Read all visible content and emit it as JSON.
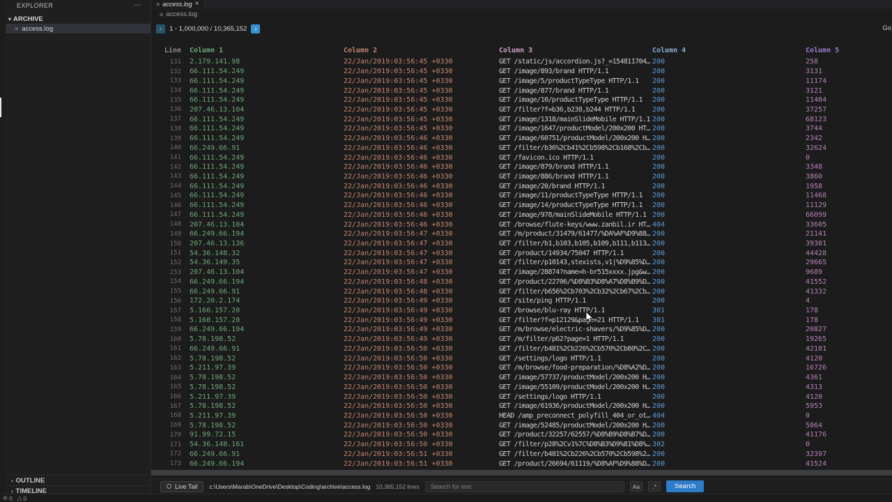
{
  "sidebar": {
    "title": "EXPLORER",
    "more_icon": "⋯",
    "section_label": "ARCHIVE",
    "file_label": "access.log",
    "outline_label": "OUTLINE",
    "timeline_label": "TIMELINE"
  },
  "tab": {
    "label": "access.log",
    "close": "×",
    "file_icon": "≡"
  },
  "breadcrumb": {
    "label": "access.log",
    "file_icon": "≡"
  },
  "pagination": {
    "prev_icon": "‹",
    "next_icon": "›",
    "range_text": "1 - 1,000,000 / 10,365,152",
    "go_label": "Go"
  },
  "table": {
    "headers": [
      "Line",
      "Column 1",
      "Column 2",
      "Column 3",
      "Column 4",
      "Column 5"
    ],
    "rows": [
      [
        "131",
        "2.179.141.98",
        "22/Jan/2019:03:56:45 +0330",
        "GET /static/js/accordion.js?_=154811704…",
        "200",
        "258"
      ],
      [
        "132",
        "66.111.54.249",
        "22/Jan/2019:03:56:45 +0330",
        "GET /image/893/brand HTTP/1.1",
        "200",
        "3131"
      ],
      [
        "133",
        "66.111.54.249",
        "22/Jan/2019:03:56:45 +0330",
        "GET /image/5/productTypeType HTTP/1.1",
        "200",
        "11174"
      ],
      [
        "134",
        "66.111.54.249",
        "22/Jan/2019:03:56:45 +0330",
        "GET /image/877/brand HTTP/1.1",
        "200",
        "3121"
      ],
      [
        "135",
        "66.111.54.249",
        "22/Jan/2019:03:56:45 +0330",
        "GET /image/10/productTypeType HTTP/1.1",
        "200",
        "11404"
      ],
      [
        "136",
        "207.46.13.104",
        "22/Jan/2019:03:56:45 +0330",
        "GET /filter?f=b36,b238,b244 HTTP/1.1",
        "200",
        "37257"
      ],
      [
        "137",
        "66.111.54.249",
        "22/Jan/2019:03:56:45 +0330",
        "GET /image/1318/mainSlideMobile HTTP/1.1",
        "200",
        "68123"
      ],
      [
        "138",
        "66.111.54.249",
        "22/Jan/2019:03:56:45 +0330",
        "GET /image/1647/productModel/200x200 HT…",
        "200",
        "3744"
      ],
      [
        "139",
        "66.111.54.249",
        "22/Jan/2019:03:56:46 +0330",
        "GET /image/60751/productModel/200x200 H…",
        "200",
        "2342"
      ],
      [
        "140",
        "66.249.66.91",
        "22/Jan/2019:03:56:46 +0330",
        "GET /filter/b36%2Cb41%2Cb598%2Cb168%2Cb…",
        "200",
        "32624"
      ],
      [
        "141",
        "66.111.54.249",
        "22/Jan/2019:03:56:46 +0330",
        "GET /favicon.ico HTTP/1.1",
        "200",
        "0"
      ],
      [
        "142",
        "66.111.54.249",
        "22/Jan/2019:03:56:46 +0330",
        "GET /image/879/brand HTTP/1.1",
        "200",
        "3348"
      ],
      [
        "143",
        "66.111.54.249",
        "22/Jan/2019:03:56:46 +0330",
        "GET /image/886/brand HTTP/1.1",
        "200",
        "3860"
      ],
      [
        "144",
        "66.111.54.249",
        "22/Jan/2019:03:56:46 +0330",
        "GET /image/20/brand HTTP/1.1",
        "200",
        "1958"
      ],
      [
        "145",
        "66.111.54.249",
        "22/Jan/2019:03:56:46 +0330",
        "GET /image/11/productTypeType HTTP/1.1",
        "200",
        "11468"
      ],
      [
        "146",
        "66.111.54.249",
        "22/Jan/2019:03:56:46 +0330",
        "GET /image/14/productTypeType HTTP/1.1",
        "200",
        "11129"
      ],
      [
        "147",
        "66.111.54.249",
        "22/Jan/2019:03:56:46 +0330",
        "GET /image/978/mainSlideMobile HTTP/1.1",
        "200",
        "66099"
      ],
      [
        "148",
        "207.46.13.104",
        "22/Jan/2019:03:56:46 +0330",
        "GET /browse/flute-keys/www.zanbil.ir HT…",
        "404",
        "33605"
      ],
      [
        "149",
        "66.249.66.194",
        "22/Jan/2019:03:56:47 +0330",
        "GET /m/product/31479/61477/%DA%AF%D9%88…",
        "200",
        "21141"
      ],
      [
        "150",
        "207.46.13.136",
        "22/Jan/2019:03:56:47 +0330",
        "GET /filter/b1,b103,b105,b109,b111,b113…",
        "200",
        "39301"
      ],
      [
        "151",
        "54.36.148.32",
        "22/Jan/2019:03:56:47 +0330",
        "GET /product/14934/75047 HTTP/1.1",
        "200",
        "44428"
      ],
      [
        "152",
        "54.36.149.35",
        "22/Jan/2019:03:56:47 +0330",
        "GET /filter/p10143,stexists,v1|%D9%85%D…",
        "200",
        "29665"
      ],
      [
        "153",
        "207.46.13.104",
        "22/Jan/2019:03:56:47 +0330",
        "GET /image/28874?name=h-br515xxxx.jpg&w…",
        "200",
        "9689"
      ],
      [
        "154",
        "66.249.66.194",
        "22/Jan/2019:03:56:48 +0330",
        "GET /product/22706/%D8%B3%D8%A7%D8%B9%D…",
        "200",
        "41552"
      ],
      [
        "155",
        "66.249.66.91",
        "22/Jan/2019:03:56:48 +0330",
        "GET /filter/b656%2Cb703%2Cb32%2Cb67%2Cb…",
        "200",
        "41332"
      ],
      [
        "156",
        "172.20.2.174",
        "22/Jan/2019:03:56:49 +0330",
        "GET /site/ping HTTP/1.1",
        "200",
        "4"
      ],
      [
        "157",
        "5.160.157.20",
        "22/Jan/2019:03:56:49 +0330",
        "GET /browse/blu-ray HTTP/1.1",
        "301",
        "178"
      ],
      [
        "158",
        "5.160.157.20",
        "22/Jan/2019:03:56:49 +0330",
        "GET /filter?f=p12129&page=21 HTTP/1.1",
        "301",
        "178"
      ],
      [
        "159",
        "66.249.66.194",
        "22/Jan/2019:03:56:49 +0330",
        "GET /m/browse/electric-shavers/%D9%85%D…",
        "200",
        "20827"
      ],
      [
        "160",
        "5.78.198.52",
        "22/Jan/2019:03:56:49 +0330",
        "GET /m/filter/p62?page=1 HTTP/1.1",
        "200",
        "19265"
      ],
      [
        "161",
        "66.249.66.91",
        "22/Jan/2019:03:56:50 +0330",
        "GET /filter/b481%2Cb226%2Cb570%2Cb80%2C…",
        "200",
        "42101"
      ],
      [
        "162",
        "5.78.198.52",
        "22/Jan/2019:03:56:50 +0330",
        "GET /settings/logo HTTP/1.1",
        "200",
        "4120"
      ],
      [
        "163",
        "5.211.97.39",
        "22/Jan/2019:03:56:50 +0330",
        "GET /m/browse/food-preparation/%D8%A2%D…",
        "200",
        "16726"
      ],
      [
        "164",
        "5.78.198.52",
        "22/Jan/2019:03:56:50 +0330",
        "GET /image/57737/productModel/200x200 H…",
        "200",
        "4361"
      ],
      [
        "165",
        "5.78.198.52",
        "22/Jan/2019:03:56:50 +0330",
        "GET /image/55109/productModel/200x200 H…",
        "200",
        "4313"
      ],
      [
        "166",
        "5.211.97.39",
        "22/Jan/2019:03:56:50 +0330",
        "GET /settings/logo HTTP/1.1",
        "200",
        "4120"
      ],
      [
        "167",
        "5.78.198.52",
        "22/Jan/2019:03:56:50 +0330",
        "GET /image/61936/productModel/200x200 H…",
        "200",
        "5953"
      ],
      [
        "168",
        "5.211.97.39",
        "22/Jan/2019:03:56:50 +0330",
        "HEAD /amp_preconnect_polyfill_404_or_ot…",
        "404",
        "0"
      ],
      [
        "169",
        "5.78.198.52",
        "22/Jan/2019:03:56:50 +0330",
        "GET /image/52485/productModel/200x200 H…",
        "200",
        "5064"
      ],
      [
        "170",
        "91.99.72.15",
        "22/Jan/2019:03:56:50 +0330",
        "GET /product/32257/62557/%D8%B9%D8%B7%D…",
        "200",
        "41176"
      ],
      [
        "171",
        "54.36.148.161",
        "22/Jan/2019:03:56:50 +0330",
        "GET /filter/p28%2Cv1%7C%D8%B3%D9%81%D8%…",
        "302",
        "0"
      ],
      [
        "172",
        "66.249.66.91",
        "22/Jan/2019:03:56:51 +0330",
        "GET /filter/b481%2Cb226%2Cb570%2Cb598%2…",
        "200",
        "32397"
      ],
      [
        "173",
        "66.249.66.194",
        "22/Jan/2019:03:56:51 +0330",
        "GET /product/26694/61119/%D8%AF%D9%88%D…",
        "200",
        "41524"
      ]
    ]
  },
  "panel": {
    "live_tail_label": "Live Tail",
    "path": "c:\\Users\\Marab\\OneDrive\\Desktop\\Coding\\archive\\access.log",
    "lines_count": "10,365,152 lines",
    "search_placeholder": "Search for text",
    "case_button": "Aa",
    "regex_button": ".*",
    "search_button": "Search"
  },
  "status_bar": {
    "errors_icon": "⊘",
    "errors_count": "0",
    "warnings_icon": "△",
    "warnings_count": "0"
  },
  "colors": {
    "accent": "#3794d1",
    "search_button": "#2e7cc9",
    "ip": "#6ca973",
    "timestamp": "#c4876f",
    "request": "#cfcfcf",
    "status": "#5e9dd6",
    "bytes": "#b385b3",
    "header_col3": "#d2a3c9",
    "header_col4": "#86aed6",
    "header_col5": "#9b7fd1"
  }
}
